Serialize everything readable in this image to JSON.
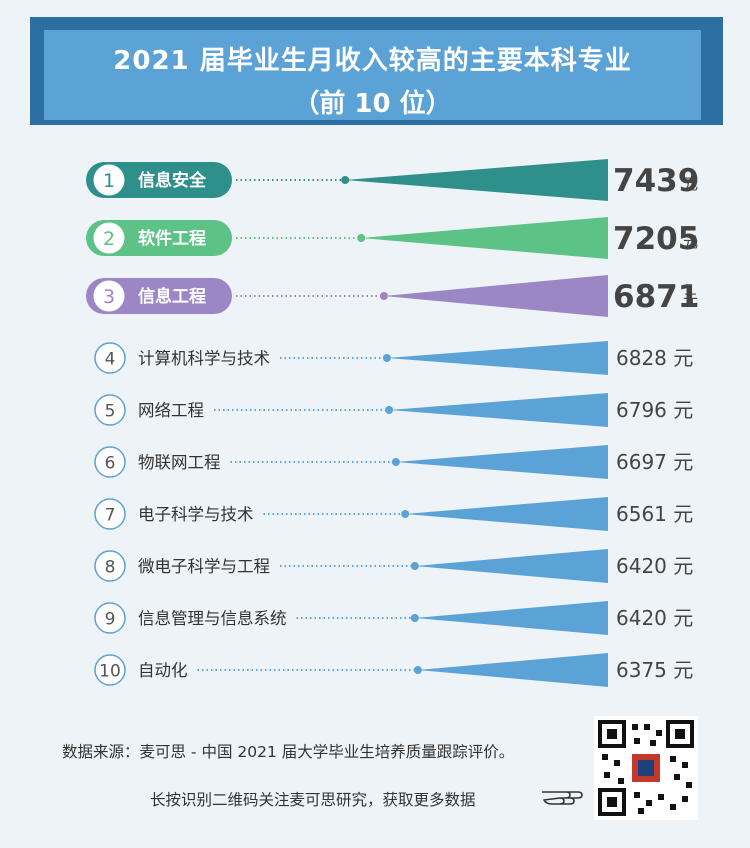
{
  "title": {
    "line1": "2021 届毕业生月收入较高的主要本科专业",
    "line2": "（前 10 位）"
  },
  "colors": {
    "top1": "#2f8f8a",
    "top2": "#5cc285",
    "top3": "#9b87c6",
    "rest": "#5ba3d6",
    "title_band": "#2b6fa3",
    "title_box": "#5ba3d6"
  },
  "chart_data": {
    "type": "bar",
    "unit": "元",
    "categories": [
      "信息安全",
      "软件工程",
      "信息工程",
      "计算机科学与技术",
      "网络工程",
      "物联网工程",
      "电子科学与技术",
      "微电子科学与工程",
      "信息管理与信息系统",
      "自动化"
    ],
    "ranks": [
      "1",
      "2",
      "3",
      "4",
      "5",
      "6",
      "7",
      "8",
      "9",
      "10"
    ],
    "values": [
      7439,
      7205,
      6871,
      6828,
      6796,
      6697,
      6561,
      6420,
      6420,
      6375
    ]
  },
  "footer": {
    "source": "数据来源：麦可思 - 中国 2021 届大学毕业生培养质量跟踪评价。",
    "qr_hint": "长按识别二维码关注麦可思研究，获取更多数据",
    "hand_icon": "pointing-hand-icon",
    "qr_icon": "qr-code-icon"
  }
}
